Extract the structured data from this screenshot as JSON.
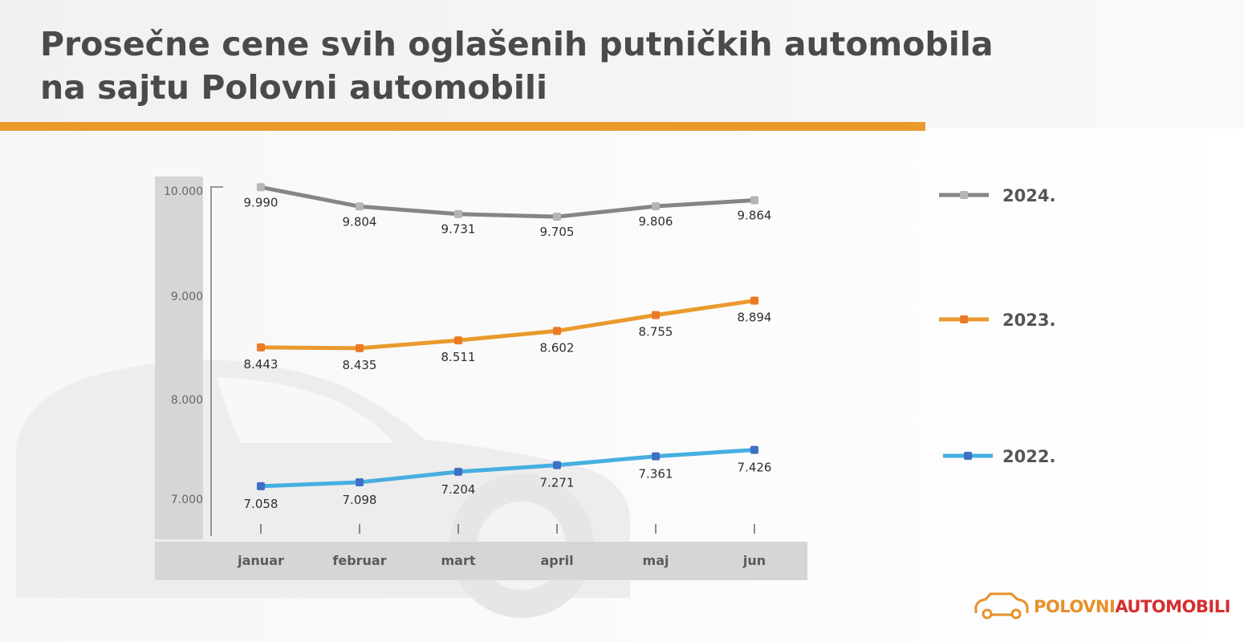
{
  "title": {
    "line1": "Prosečne cene svih oglašenih putničkih automobila",
    "line2": "na sajtu Polovni automobili"
  },
  "colors": {
    "accent": "#ea9a2d",
    "series_2024": "#858585",
    "series_2023": "#ea9a2d",
    "series_2022": "#46aee0",
    "marker_2024": "#b5b5b5",
    "marker_2023": "#ea7a25",
    "marker_2022": "#3f6fc4"
  },
  "logo": {
    "part1": "POLOVNI",
    "part2": "AUTOMOBILI",
    "icon": "car-outline-icon"
  },
  "chart_data": {
    "type": "line",
    "title": "Prosečne cene svih oglašenih putničkih automobila na sajtu Polovni automobili",
    "categories": [
      "januar",
      "februar",
      "mart",
      "april",
      "maj",
      "jun"
    ],
    "y_ticks": [
      {
        "value": 7000,
        "label": "7.000"
      },
      {
        "value": 8000,
        "label": "8.000"
      },
      {
        "value": 9000,
        "label": "9.000"
      },
      {
        "value": 10000,
        "label": "10.000"
      }
    ],
    "ylim": [
      6600,
      10050
    ],
    "series": [
      {
        "name": "2024.",
        "values": [
          9990,
          9804,
          9731,
          9705,
          9806,
          9864
        ],
        "labels": [
          "9.990",
          "9.804",
          "9.731",
          "9.705",
          "9.806",
          "9.864"
        ]
      },
      {
        "name": "2023.",
        "values": [
          8443,
          8435,
          8511,
          8602,
          8755,
          8894
        ],
        "labels": [
          "8.443",
          "8.435",
          "8.511",
          "8.602",
          "8.755",
          "8.894"
        ]
      },
      {
        "name": "2022.",
        "values": [
          7058,
          7098,
          7204,
          7271,
          7361,
          7426
        ],
        "labels": [
          "7.058",
          "7.098",
          "7.204",
          "7.271",
          "7.361",
          "7.426"
        ]
      }
    ],
    "legend": "right"
  }
}
